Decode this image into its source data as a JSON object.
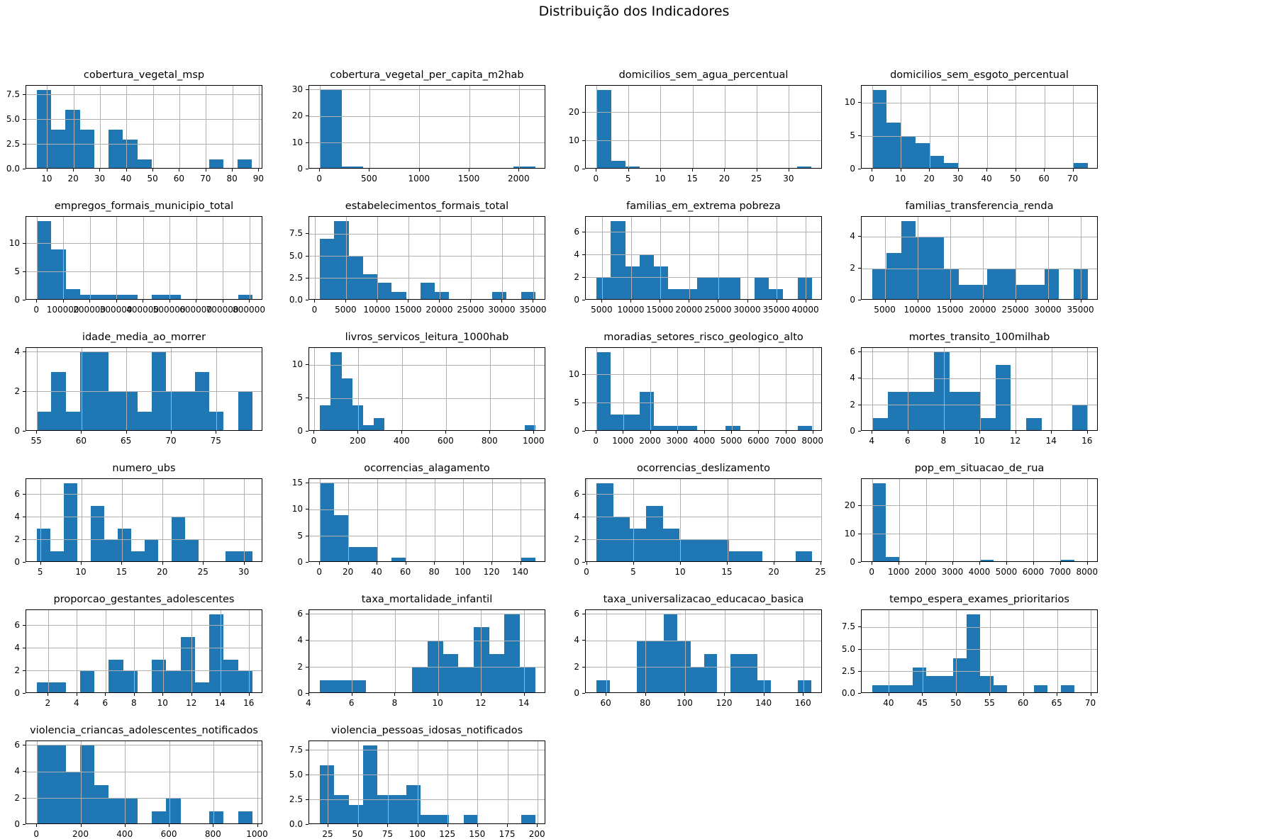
{
  "suptitle": "Distribuição dos Indicadores",
  "style": {
    "bar_color": "#1f77b4",
    "grid_color": "#b0b0b0",
    "spine_color": "#000000",
    "background": "#ffffff"
  },
  "layout_note": "4 columns x 6 rows of histogram subplots; last row has 2 plots",
  "chart_data": [
    {
      "type": "bar",
      "title": "cobertura_vegetal_msp",
      "bin_start": 6,
      "bin_width": 5.42,
      "values": [
        8,
        4,
        6,
        4,
        0,
        4,
        3,
        1,
        0,
        0,
        0,
        0,
        1,
        0,
        1
      ],
      "xlim": [
        2,
        91.5
      ],
      "xticks": [
        10,
        20,
        30,
        40,
        50,
        60,
        70,
        80,
        90
      ],
      "yticks": [
        0,
        2.5,
        5,
        7.5
      ],
      "ytick_labels": [
        "0.0",
        "2.5",
        "5.0",
        "7.5"
      ],
      "ymax": 8.4
    },
    {
      "type": "bar",
      "title": "cobertura_vegetal_per_capita_m2hab",
      "bin_start": 0,
      "bin_width": 216,
      "values": [
        30,
        1,
        0,
        0,
        0,
        0,
        0,
        0,
        0,
        1
      ],
      "xlim": [
        -108,
        2268
      ],
      "xticks": [
        0,
        500,
        1000,
        1500,
        2000
      ],
      "yticks": [
        0,
        10,
        20,
        30
      ],
      "ytick_labels": [
        "0",
        "10",
        "20",
        "30"
      ],
      "ymax": 31.5
    },
    {
      "type": "bar",
      "title": "domicilios_sem_agua_percentual",
      "bin_start": 0,
      "bin_width": 2.23,
      "values": [
        28,
        3,
        1,
        0,
        0,
        0,
        0,
        0,
        0,
        0,
        0,
        0,
        0,
        0,
        1
      ],
      "xlim": [
        -1.7,
        35.2
      ],
      "xticks": [
        0,
        5,
        10,
        15,
        20,
        25,
        30
      ],
      "yticks": [
        0,
        10,
        20
      ],
      "ytick_labels": [
        "0",
        "10",
        "20"
      ],
      "ymax": 29.4
    },
    {
      "type": "bar",
      "title": "domicilios_sem_esgoto_percentual",
      "bin_start": 0,
      "bin_width": 5,
      "values": [
        12,
        7,
        5,
        4,
        2,
        1,
        0,
        0,
        0,
        0,
        0,
        0,
        0,
        0,
        1
      ],
      "xlim": [
        -3.75,
        78.75
      ],
      "xticks": [
        0,
        10,
        20,
        30,
        40,
        50,
        60,
        70
      ],
      "yticks": [
        0,
        5,
        10
      ],
      "ytick_labels": [
        "0",
        "5",
        "10"
      ],
      "ymax": 12.6
    },
    {
      "type": "bar",
      "title": "empregos_formais_municipio_total",
      "bin_start": 0,
      "bin_width": 54000,
      "values": [
        14,
        9,
        2,
        1,
        1,
        1,
        1,
        0,
        1,
        1,
        0,
        0,
        0,
        0,
        1
      ],
      "xlim": [
        -40500,
        850500
      ],
      "xticks": [
        0,
        100000,
        200000,
        300000,
        400000,
        500000,
        600000,
        700000,
        800000
      ],
      "yticks": [
        0,
        5,
        10
      ],
      "ytick_labels": [
        "0",
        "5",
        "10"
      ],
      "ymax": 14.7
    },
    {
      "type": "bar",
      "title": "estabelecimentos_formais_total",
      "bin_start": 770,
      "bin_width": 2300,
      "values": [
        7,
        9,
        5,
        3,
        2,
        1,
        0,
        2,
        1,
        0,
        0,
        0,
        1,
        0,
        1
      ],
      "xlim": [
        -955,
        36995
      ],
      "xticks": [
        0,
        5000,
        10000,
        15000,
        20000,
        25000,
        30000,
        35000
      ],
      "yticks": [
        0,
        2.5,
        5,
        7.5
      ],
      "ytick_labels": [
        "0.0",
        "2.5",
        "5.0",
        "7.5"
      ],
      "ymax": 9.45
    },
    {
      "type": "bar",
      "title": "familias_em_extrema pobreza",
      "bin_start": 4000,
      "bin_width": 2467,
      "values": [
        2,
        7,
        3,
        4,
        3,
        1,
        1,
        2,
        2,
        2,
        0,
        2,
        1,
        0,
        2
      ],
      "xlim": [
        2150,
        42855
      ],
      "xticks": [
        5000,
        10000,
        15000,
        20000,
        25000,
        30000,
        35000,
        40000
      ],
      "yticks": [
        0,
        2,
        4,
        6
      ],
      "ytick_labels": [
        "0",
        "2",
        "4",
        "6"
      ],
      "ymax": 7.35
    },
    {
      "type": "bar",
      "title": "familias_transferencia_renda",
      "bin_start": 3000,
      "bin_width": 2200,
      "values": [
        2,
        3,
        5,
        4,
        4,
        2,
        1,
        1,
        2,
        2,
        1,
        1,
        2,
        0,
        2
      ],
      "xlim": [
        1350,
        37650
      ],
      "xticks": [
        5000,
        10000,
        15000,
        20000,
        25000,
        30000,
        35000
      ],
      "yticks": [
        0,
        2,
        4
      ],
      "ytick_labels": [
        "0",
        "2",
        "4"
      ],
      "ymax": 5.25
    },
    {
      "type": "bar",
      "title": "idade_media_ao_morrer",
      "bin_start": 55,
      "bin_width": 1.6,
      "values": [
        1,
        3,
        1,
        4,
        4,
        2,
        2,
        1,
        4,
        2,
        2,
        3,
        1,
        0,
        2
      ],
      "xlim": [
        53.8,
        80.2
      ],
      "xticks": [
        55,
        60,
        65,
        70,
        75
      ],
      "yticks": [
        0,
        2,
        4
      ],
      "ytick_labels": [
        "0",
        "2",
        "4"
      ],
      "ymax": 4.2
    },
    {
      "type": "bar",
      "title": "livros_servicos_leitura_1000hab",
      "bin_start": 25,
      "bin_width": 49,
      "values": [
        4,
        12,
        8,
        4,
        1,
        2,
        0,
        0,
        0,
        0,
        0,
        0,
        0,
        0,
        0,
        0,
        0,
        0,
        0,
        1
      ],
      "xlim": [
        -24,
        1054
      ],
      "xticks": [
        0,
        200,
        400,
        600,
        800,
        1000
      ],
      "yticks": [
        0,
        5,
        10
      ],
      "ytick_labels": [
        "0",
        "5",
        "10"
      ],
      "ymax": 12.6
    },
    {
      "type": "bar",
      "title": "moradias_setores_risco_geologico_alto",
      "bin_start": 0,
      "bin_width": 530,
      "values": [
        14,
        3,
        3,
        7,
        1,
        1,
        1,
        0,
        0,
        1,
        0,
        0,
        0,
        0,
        1
      ],
      "xlim": [
        -398,
        8348
      ],
      "xticks": [
        0,
        1000,
        2000,
        3000,
        4000,
        5000,
        6000,
        7000,
        8000
      ],
      "yticks": [
        0,
        5,
        10
      ],
      "ytick_labels": [
        "0",
        "5",
        "10"
      ],
      "ymax": 14.7
    },
    {
      "type": "bar",
      "title": "mortes_transito_100milhab",
      "bin_start": 4,
      "bin_width": 0.857,
      "values": [
        1,
        3,
        3,
        3,
        6,
        3,
        3,
        1,
        5,
        0,
        1,
        0,
        0,
        2
      ],
      "xlim": [
        3.4,
        16.6
      ],
      "xticks": [
        4,
        6,
        8,
        10,
        12,
        14,
        16
      ],
      "yticks": [
        0,
        2,
        4,
        6
      ],
      "ytick_labels": [
        "0",
        "2",
        "4",
        "6"
      ],
      "ymax": 6.3
    },
    {
      "type": "bar",
      "title": "numero_ubs",
      "bin_start": 4.5,
      "bin_width": 1.656,
      "values": [
        3,
        1,
        7,
        0,
        5,
        2,
        3,
        1,
        2,
        0,
        4,
        2,
        0,
        0,
        1,
        1
      ],
      "xlim": [
        3.2,
        32.3
      ],
      "xticks": [
        5,
        10,
        15,
        20,
        25,
        30
      ],
      "yticks": [
        0,
        2,
        4,
        6
      ],
      "ytick_labels": [
        "0",
        "2",
        "4",
        "6"
      ],
      "ymax": 7.35
    },
    {
      "type": "bar",
      "title": "ocorrencias_alagamento",
      "bin_start": 0,
      "bin_width": 10,
      "values": [
        15,
        9,
        3,
        3,
        0,
        1,
        0,
        0,
        0,
        0,
        0,
        0,
        0,
        0,
        1
      ],
      "xlim": [
        -7.5,
        157.5
      ],
      "xticks": [
        0,
        20,
        40,
        60,
        80,
        100,
        120,
        140
      ],
      "yticks": [
        0,
        5,
        10,
        15
      ],
      "ytick_labels": [
        "0",
        "5",
        "10",
        "15"
      ],
      "ymax": 15.75
    },
    {
      "type": "bar",
      "title": "ocorrencias_deslizamento",
      "bin_start": 1,
      "bin_width": 1.77,
      "values": [
        7,
        4,
        3,
        5,
        3,
        2,
        2,
        2,
        1,
        1,
        0,
        0,
        1
      ],
      "xlim": [
        -0.15,
        25.15
      ],
      "xticks": [
        0,
        5,
        10,
        15,
        20,
        25
      ],
      "yticks": [
        0,
        2,
        4,
        6
      ],
      "ytick_labels": [
        "0",
        "2",
        "4",
        "6"
      ],
      "ymax": 7.35
    },
    {
      "type": "bar",
      "title": "pop_em_situacao_de_rua",
      "bin_start": 0,
      "bin_width": 500,
      "values": [
        28,
        2,
        0,
        0,
        0,
        0,
        0,
        0,
        1,
        0,
        0,
        0,
        0,
        0,
        1,
        0
      ],
      "xlim": [
        -400,
        8400
      ],
      "xticks": [
        0,
        1000,
        2000,
        3000,
        4000,
        5000,
        6000,
        7000,
        8000
      ],
      "yticks": [
        0,
        10,
        20
      ],
      "ytick_labels": [
        "0",
        "10",
        "20"
      ],
      "ymax": 29.4
    },
    {
      "type": "bar",
      "title": "proporcao_gestantes_adolescentes",
      "bin_start": 1.2,
      "bin_width": 1.0,
      "values": [
        1,
        1,
        0,
        2,
        0,
        3,
        2,
        0,
        3,
        2,
        5,
        1,
        7,
        3,
        2
      ],
      "xlim": [
        0.45,
        16.95
      ],
      "xticks": [
        2,
        4,
        6,
        8,
        10,
        12,
        14,
        16
      ],
      "yticks": [
        0,
        2,
        4,
        6
      ],
      "ytick_labels": [
        "0",
        "2",
        "4",
        "6"
      ],
      "ymax": 7.35
    },
    {
      "type": "bar",
      "title": "taxa_mortalidade_infantil",
      "bin_start": 4.5,
      "bin_width": 0.714,
      "values": [
        1,
        1,
        1,
        0,
        0,
        0,
        2,
        4,
        3,
        2,
        5,
        3,
        6,
        2
      ],
      "xlim": [
        4,
        15
      ],
      "xticks": [
        4,
        6,
        8,
        10,
        12,
        14
      ],
      "yticks": [
        0,
        2,
        4,
        6
      ],
      "ytick_labels": [
        "0",
        "2",
        "4",
        "6"
      ],
      "ymax": 6.3
    },
    {
      "type": "bar",
      "title": "taxa_universalizacao_educacao_basica",
      "bin_start": 55,
      "bin_width": 6.8,
      "values": [
        1,
        0,
        0,
        4,
        4,
        6,
        4,
        2,
        3,
        0,
        3,
        3,
        1,
        0,
        0,
        1
      ],
      "xlim": [
        49.5,
        169.6
      ],
      "xticks": [
        60,
        80,
        100,
        120,
        140,
        160
      ],
      "yticks": [
        0,
        2,
        4,
        6
      ],
      "ytick_labels": [
        "0",
        "2",
        "4",
        "6"
      ],
      "ymax": 6.3
    },
    {
      "type": "bar",
      "title": "tempo_espera_exames_prioritarios",
      "bin_start": 37.5,
      "bin_width": 2,
      "values": [
        1,
        1,
        1,
        3,
        2,
        2,
        4,
        9,
        2,
        1,
        0,
        0,
        1,
        0,
        1,
        0
      ],
      "xlim": [
        35.9,
        71.1
      ],
      "xticks": [
        40,
        45,
        50,
        55,
        60,
        65,
        70
      ],
      "yticks": [
        0,
        2.5,
        5,
        7.5
      ],
      "ytick_labels": [
        "0.0",
        "2.5",
        "5.0",
        "7.5"
      ],
      "ymax": 9.45
    },
    {
      "type": "bar",
      "title": "violencia_criancas_adolescentes_notificados",
      "bin_start": 0,
      "bin_width": 65,
      "values": [
        6,
        6,
        4,
        6,
        3,
        2,
        2,
        0,
        1,
        2,
        0,
        0,
        1,
        0,
        1
      ],
      "xlim": [
        -49,
        1024
      ],
      "xticks": [
        0,
        200,
        400,
        600,
        800,
        1000
      ],
      "yticks": [
        0,
        2,
        4,
        6
      ],
      "ytick_labels": [
        "0",
        "2",
        "4",
        "6"
      ],
      "ymax": 6.3
    },
    {
      "type": "bar",
      "title": "violencia_pessoas_idosas_notificados",
      "bin_start": 18,
      "bin_width": 12,
      "values": [
        6,
        3,
        2,
        8,
        3,
        3,
        4,
        1,
        1,
        0,
        1,
        0,
        0,
        0,
        1
      ],
      "xlim": [
        9,
        207
      ],
      "xticks": [
        25,
        50,
        75,
        100,
        125,
        150,
        175,
        200
      ],
      "yticks": [
        0,
        2.5,
        5,
        7.5
      ],
      "ytick_labels": [
        "0.0",
        "2.5",
        "5.0",
        "7.5"
      ],
      "ymax": 8.4
    }
  ]
}
